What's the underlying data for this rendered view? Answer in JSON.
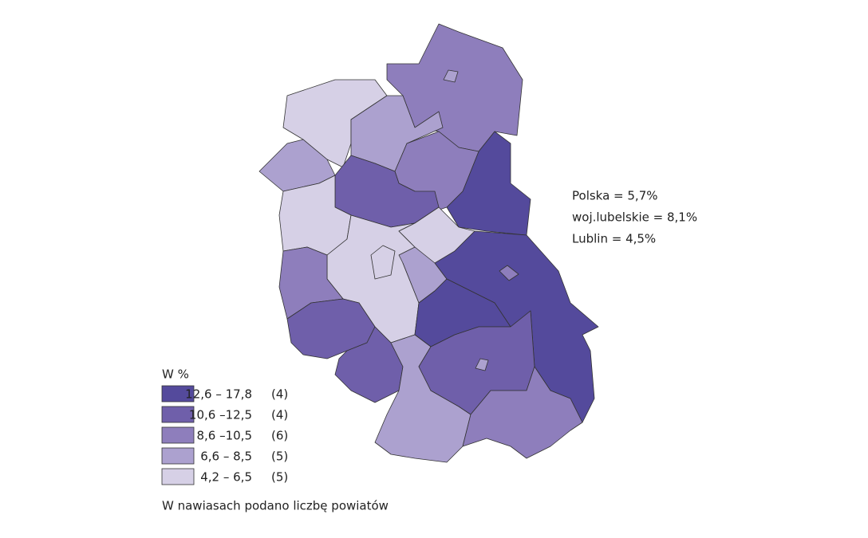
{
  "legend": {
    "title": "W %",
    "items": [
      {
        "range": "12,6 – 17,8",
        "count": "(4)",
        "color": "#544a9c"
      },
      {
        "range": "10,6 –12,5",
        "count": "(4)",
        "color": "#6f5faa"
      },
      {
        "range": "8,6 –10,5",
        "count": "(6)",
        "color": "#8e7ebc"
      },
      {
        "range": "6,6 –  8,5",
        "count": "(5)",
        "color": "#aca1cf"
      },
      {
        "range": "4,2 –  6,5",
        "count": "(5)",
        "color": "#d6d0e6"
      }
    ],
    "note": "W nawiasach podano liczbę powiatów"
  },
  "annotations": [
    "Polska = 5,7%",
    "woj.lubelskie = 8,1%",
    "Lublin = 4,5%"
  ]
}
